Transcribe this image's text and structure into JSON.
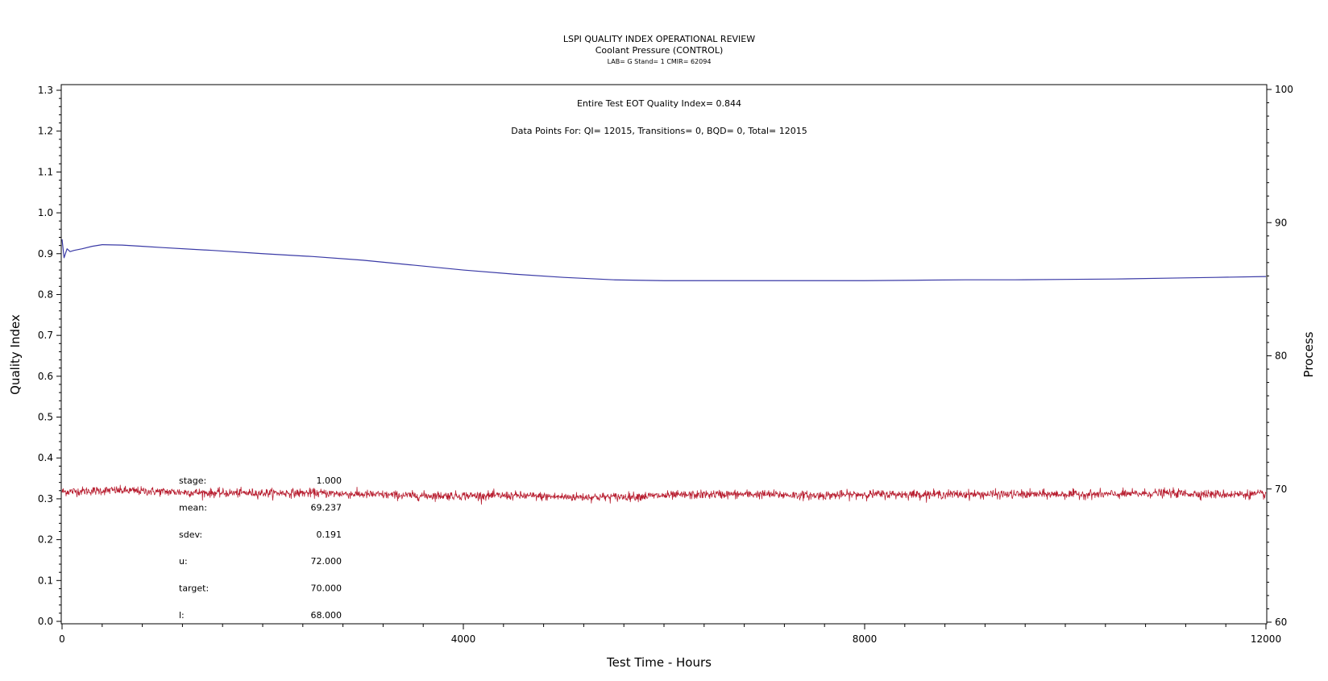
{
  "chart_data": {
    "type": "line",
    "title": "LSPI QUALITY INDEX OPERATIONAL REVIEW",
    "subtitle": "Coolant Pressure (CONTROL)",
    "subtitle2": "LAB= G Stand= 1 CMIR= 62094",
    "xlabel": "Test Time - Hours",
    "ylabel_left": "Quality Index",
    "ylabel_right": "Process",
    "xlim": [
      0,
      12000
    ],
    "ylim_left": [
      0.0,
      1.3
    ],
    "ylim_right": [
      60,
      100
    ],
    "x_ticks": [
      "0",
      "4000",
      "8000",
      "12000"
    ],
    "y_left_ticks": [
      "0.0",
      "0.1",
      "0.2",
      "0.3",
      "0.4",
      "0.5",
      "0.6",
      "0.7",
      "0.8",
      "0.9",
      "1.0",
      "1.1",
      "1.2",
      "1.3"
    ],
    "y_right_ticks": [
      "60",
      "70",
      "80",
      "90",
      "100"
    ],
    "annotations": {
      "eot": "Entire Test EOT Quality Index=   0.844",
      "data_points": "Data Points For: QI=  12015, Transitions=      0, BQD=       0, Total=  12015"
    },
    "stats": [
      {
        "label": "stage:",
        "value": "1.000"
      },
      {
        "label": "mean:",
        "value": "69.237"
      },
      {
        "label": "sdev:",
        "value": "0.191"
      },
      {
        "label": "u:",
        "value": "72.000"
      },
      {
        "label": "target:",
        "value": "70.000"
      },
      {
        "label": "l:",
        "value": "68.000"
      }
    ],
    "series": [
      {
        "axis": "left",
        "color": "#3a3aa6",
        "x": [
          0,
          20,
          50,
          80,
          120,
          200,
          300,
          400,
          600,
          800,
          1000,
          1500,
          2000,
          2500,
          3000,
          3500,
          4000,
          4500,
          5000,
          5500,
          6000,
          6500,
          7000,
          7500,
          8000,
          8500,
          9000,
          9500,
          10000,
          10500,
          11000,
          11500,
          12000
        ],
        "y": [
          0.935,
          0.89,
          0.912,
          0.905,
          0.908,
          0.912,
          0.918,
          0.922,
          0.921,
          0.918,
          0.915,
          0.908,
          0.9,
          0.893,
          0.884,
          0.872,
          0.86,
          0.85,
          0.842,
          0.836,
          0.834,
          0.834,
          0.834,
          0.834,
          0.834,
          0.835,
          0.836,
          0.836,
          0.837,
          0.838,
          0.84,
          0.842,
          0.844
        ]
      },
      {
        "axis": "right",
        "color": "#b81e30",
        "x": [
          0,
          500,
          1000,
          1500,
          2000,
          2500,
          3000,
          3500,
          4000,
          4500,
          5000,
          5500,
          6000,
          6500,
          7000,
          7500,
          8000,
          8500,
          9000,
          9500,
          10000,
          10500,
          11000,
          11500,
          12000
        ],
        "y": [
          69.8,
          69.9,
          69.8,
          69.7,
          69.7,
          69.7,
          69.6,
          69.5,
          69.5,
          69.5,
          69.4,
          69.4,
          69.5,
          69.6,
          69.6,
          69.5,
          69.6,
          69.6,
          69.6,
          69.6,
          69.6,
          69.6,
          69.7,
          69.6,
          69.6
        ],
        "noise_sdev": 0.191
      }
    ]
  }
}
